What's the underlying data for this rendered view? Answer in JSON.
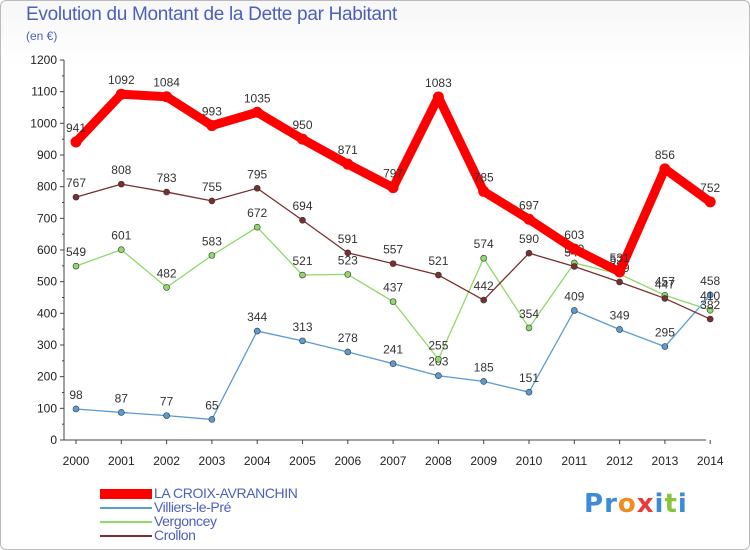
{
  "title": "Evolution du Montant de la Dette par Habitant",
  "subtitle": "(en €)",
  "logo": {
    "letters": [
      "P",
      "r",
      "o",
      "x",
      "i",
      "t",
      "i"
    ],
    "colors": [
      "#3c8bd8",
      "#3c8bd8",
      "#f28c1e",
      "#e63c3c",
      "#3c8bd8",
      "#8ac43f",
      "#3c8bd8"
    ]
  },
  "chart_data": {
    "type": "line",
    "title": "Evolution du Montant de la Dette par Habitant",
    "subtitle": "(en €)",
    "x": [
      "2000",
      "2001",
      "2002",
      "2003",
      "2004",
      "2005",
      "2006",
      "2007",
      "2008",
      "2009",
      "2010",
      "2011",
      "2012",
      "2013",
      "2014"
    ],
    "ylim": [
      0,
      1200
    ],
    "yticks": [
      0,
      100,
      200,
      300,
      400,
      500,
      600,
      700,
      800,
      900,
      1000,
      1100,
      1200
    ],
    "grid": false,
    "legend_position": "bottom-left",
    "series": [
      {
        "name": "LA CROIX-AVRANCHIN",
        "color": "#ff0000",
        "thick": true,
        "values": [
          941,
          1092,
          1084,
          993,
          1035,
          950,
          871,
          797,
          1083,
          785,
          697,
          603,
          531,
          856,
          752
        ]
      },
      {
        "name": "Villiers-le-Pré",
        "color": "#5b9bd5",
        "values": [
          98,
          87,
          77,
          65,
          344,
          313,
          278,
          241,
          203,
          185,
          151,
          409,
          349,
          295,
          458
        ]
      },
      {
        "name": "Vergoncey",
        "color": "#8fd86a",
        "values": [
          549,
          601,
          482,
          583,
          672,
          521,
          523,
          437,
          255,
          574,
          354,
          559,
          524,
          457,
          410
        ]
      },
      {
        "name": "Crollon",
        "color": "#7a2e2e",
        "values": [
          767,
          808,
          783,
          755,
          795,
          694,
          591,
          557,
          521,
          442,
          590,
          548,
          499,
          447,
          382
        ]
      }
    ]
  }
}
